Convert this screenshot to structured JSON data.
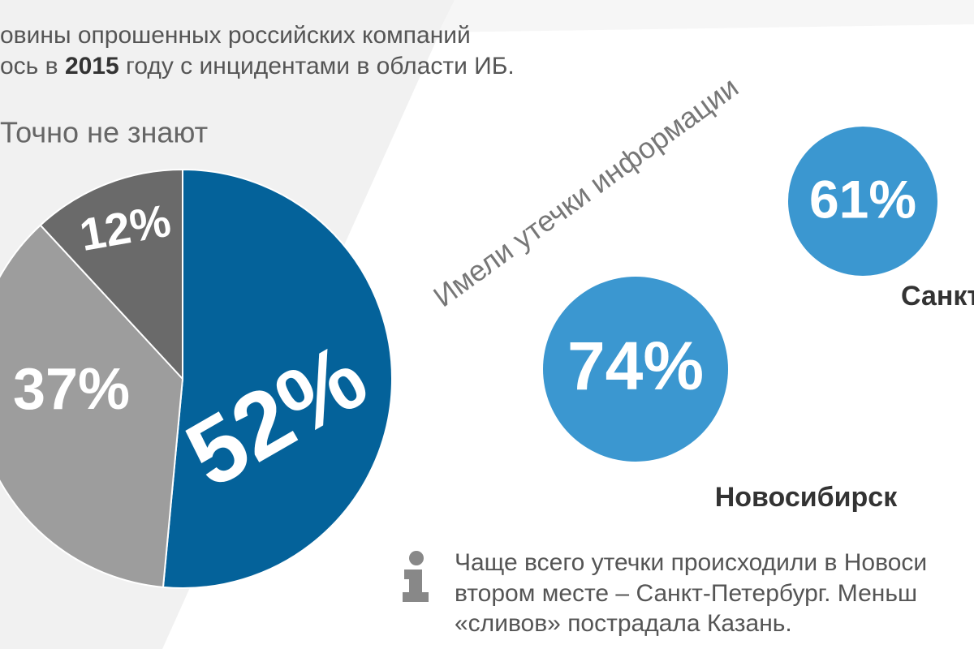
{
  "header": {
    "line1": "овины опрошенных российских компаний",
    "line2_start": "ось в",
    "line2_year": "2015",
    "line2_end": "году с инцидентами в области ИБ."
  },
  "chart_data": [
    {
      "type": "pie",
      "title": "Точно не знают",
      "values": [
        52,
        37,
        12
      ],
      "value_labels": [
        "52%",
        "37%",
        "12%"
      ],
      "colors": [
        "#04629a",
        "#9d9d9d",
        "#6a6a6a"
      ]
    },
    {
      "type": "bubble",
      "title": "Имели утечки информации",
      "categories": [
        "Новосибирск",
        "Санкт"
      ],
      "values": [
        74,
        61
      ],
      "value_labels": [
        "74%",
        "61%"
      ],
      "color": "#3b97d0"
    }
  ],
  "info": {
    "lines": [
      "Чаще всего утечки происходили в Новоси",
      "втором месте – Санкт-Петербург. Меньш",
      "«сливов» пострадала Казань."
    ]
  }
}
